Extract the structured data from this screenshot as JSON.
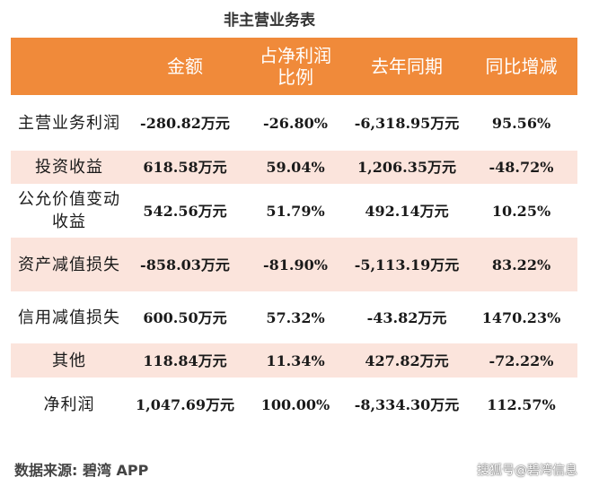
{
  "title": "非主营业务表",
  "columns": [
    "",
    "金额",
    "占净利润\n比例",
    "去年同期",
    "同比增减"
  ],
  "rows": [
    {
      "name": "主营业务利润",
      "amount": "-280.82万元",
      "ratio": "-26.80%",
      "last_year": "-6,318.95万元",
      "yoy": "95.56%"
    },
    {
      "name": "投资收益",
      "amount": "618.58万元",
      "ratio": "59.04%",
      "last_year": "1,206.35万元",
      "yoy": "-48.72%"
    },
    {
      "name": "公允价值变动收益",
      "amount": "542.56万元",
      "ratio": "51.79%",
      "last_year": "492.14万元",
      "yoy": "10.25%"
    },
    {
      "name": "资产减值损失",
      "amount": "-858.03万元",
      "ratio": "-81.90%",
      "last_year": "-5,113.19万元",
      "yoy": "83.22%"
    },
    {
      "name": "信用减值损失",
      "amount": "600.50万元",
      "ratio": "57.32%",
      "last_year": "-43.82万元",
      "yoy": "1470.23%"
    },
    {
      "name": "其他",
      "amount": "118.84万元",
      "ratio": "11.34%",
      "last_year": "427.82万元",
      "yoy": "-72.22%"
    },
    {
      "name": "净利润",
      "amount": "1,047.69万元",
      "ratio": "100.00%",
      "last_year": "-8,334.30万元",
      "yoy": "112.57%"
    }
  ],
  "watermark": "碧湾App",
  "source": "数据来源: 碧湾 APP",
  "credit": "搜狐号@碧湾信息"
}
